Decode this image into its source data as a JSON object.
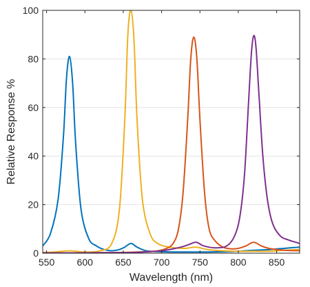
{
  "chart_data": {
    "type": "line",
    "xlabel": "Wavelength (nm)",
    "ylabel": "Relative Response %",
    "xlim": [
      545,
      880
    ],
    "ylim": [
      0,
      100
    ],
    "xticks": [
      550,
      600,
      650,
      700,
      750,
      800,
      850
    ],
    "yticks": [
      0,
      20,
      40,
      60,
      80,
      100
    ],
    "grid": "horizontal",
    "legend": "none",
    "series": [
      {
        "color": "#0072BD",
        "x": [
          545,
          555,
          565,
          572,
          576,
          580,
          584,
          588,
          595,
          605,
          615,
          625,
          635,
          645,
          652,
          660,
          668,
          680,
          700,
          720,
          740,
          760,
          780,
          800,
          820,
          840,
          860,
          880
        ],
        "y": [
          3,
          8,
          22,
          48,
          72,
          81,
          70,
          45,
          18,
          6,
          3,
          1.5,
          1,
          1.5,
          2.5,
          4,
          2.5,
          1,
          0.6,
          0.5,
          0.5,
          0.5,
          0.6,
          0.8,
          1.2,
          1.5,
          2,
          2.5
        ]
      },
      {
        "color": "#EDB120",
        "x": [
          545,
          560,
          580,
          600,
          620,
          635,
          645,
          652,
          656,
          660,
          664,
          668,
          675,
          685,
          695,
          710,
          730,
          745,
          760,
          780,
          800,
          820,
          840,
          860,
          880
        ],
        "y": [
          0.3,
          0.5,
          1,
          0.5,
          1,
          4,
          18,
          55,
          90,
          100,
          88,
          55,
          22,
          8,
          4,
          2.5,
          2,
          2.5,
          1.5,
          1,
          0.8,
          0.8,
          0.8,
          1.2,
          1.5
        ]
      },
      {
        "color": "#D95319",
        "x": [
          545,
          580,
          620,
          660,
          690,
          705,
          715,
          722,
          728,
          734,
          738,
          742,
          746,
          750,
          756,
          762,
          770,
          780,
          790,
          800,
          810,
          820,
          830,
          840,
          860,
          880
        ],
        "y": [
          0.1,
          0.1,
          0.2,
          0.4,
          0.8,
          1.8,
          4,
          10,
          25,
          55,
          80,
          89,
          80,
          55,
          25,
          10,
          5,
          2.5,
          1.8,
          2,
          3,
          4.5,
          3,
          2,
          1.2,
          1
        ]
      },
      {
        "color": "#7E2F8E",
        "x": [
          545,
          580,
          620,
          660,
          700,
          725,
          735,
          745,
          755,
          770,
          785,
          795,
          802,
          808,
          813,
          817,
          820,
          823,
          827,
          832,
          838,
          845,
          855,
          865,
          875,
          880
        ],
        "y": [
          0.1,
          0.1,
          0.2,
          0.3,
          1,
          2.5,
          3.5,
          4.5,
          3,
          2.2,
          3,
          7,
          15,
          32,
          60,
          82,
          89.5,
          85,
          65,
          40,
          22,
          12,
          7,
          5.5,
          4.5,
          4
        ]
      }
    ]
  }
}
